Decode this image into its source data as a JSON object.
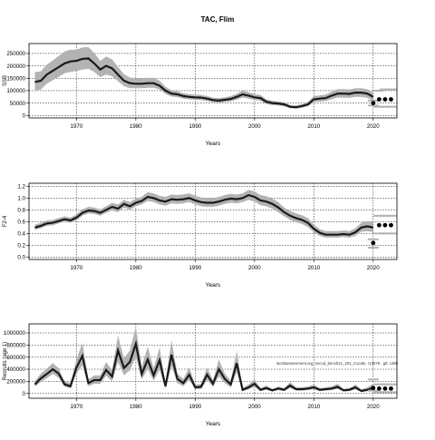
{
  "page": {
    "title": "TAC, Flim"
  },
  "annotation": "stockassessment.org, nscod_bench21_201_Cucale, r14079 , git: c28b",
  "colors": {
    "band": "#b3b3b3",
    "line": "#1a1a1a",
    "points": "#000000",
    "grid": "#000000",
    "axis": "#000000"
  },
  "chart_data": [
    {
      "type": "line",
      "title": "",
      "xlabel": "Years",
      "ylabel": "SSB",
      "xlim": [
        1962,
        2024
      ],
      "ylim": [
        -10000,
        290000
      ],
      "xticks": [
        1970,
        1980,
        1990,
        2000,
        2010,
        2020
      ],
      "yticks": [
        0,
        50000,
        100000,
        150000,
        200000,
        250000
      ],
      "grid": true,
      "x": [
        1963,
        1964,
        1965,
        1966,
        1967,
        1968,
        1969,
        1970,
        1971,
        1972,
        1973,
        1974,
        1975,
        1976,
        1977,
        1978,
        1979,
        1980,
        1981,
        1982,
        1983,
        1984,
        1985,
        1986,
        1987,
        1988,
        1989,
        1990,
        1991,
        1992,
        1993,
        1994,
        1995,
        1996,
        1997,
        1998,
        1999,
        2000,
        2001,
        2002,
        2003,
        2004,
        2005,
        2006,
        2007,
        2008,
        2009,
        2010,
        2011,
        2012,
        2013,
        2014,
        2015,
        2016,
        2017,
        2018,
        2019,
        2020
      ],
      "series": [
        {
          "values": [
            135000,
            140000,
            165000,
            180000,
            195000,
            210000,
            218000,
            220000,
            228000,
            230000,
            210000,
            185000,
            200000,
            190000,
            165000,
            140000,
            130000,
            128000,
            128000,
            130000,
            130000,
            120000,
            100000,
            88000,
            85000,
            78000,
            75000,
            73000,
            72000,
            68000,
            62000,
            60000,
            63000,
            67000,
            75000,
            85000,
            80000,
            73000,
            70000,
            55000,
            50000,
            48000,
            45000,
            35000,
            33000,
            38000,
            45000,
            65000,
            68000,
            70000,
            80000,
            88000,
            88000,
            87000,
            92000,
            92000,
            88000,
            75000
          ],
          "lower": [
            100000,
            105000,
            128000,
            142000,
            155000,
            170000,
            175000,
            180000,
            185000,
            188000,
            175000,
            155000,
            165000,
            158000,
            138000,
            118000,
            110000,
            110000,
            110000,
            112000,
            112000,
            105000,
            87000,
            76000,
            74000,
            68000,
            65000,
            63000,
            62000,
            58000,
            53000,
            51000,
            54000,
            57000,
            64000,
            72000,
            68000,
            62000,
            59000,
            46000,
            42000,
            40000,
            37000,
            29000,
            27000,
            31000,
            37000,
            54000,
            56000,
            58000,
            66000,
            72000,
            72000,
            71000,
            75000,
            75000,
            71000,
            60000
          ],
          "upper": [
            175000,
            178000,
            205000,
            222000,
            240000,
            258000,
            265000,
            265000,
            274000,
            276000,
            252000,
            220000,
            238000,
            226000,
            196000,
            166000,
            153000,
            150000,
            150000,
            152000,
            152000,
            140000,
            116000,
            102000,
            98000,
            90000,
            86000,
            84000,
            83000,
            79000,
            72000,
            70000,
            73000,
            78000,
            88000,
            100000,
            94000,
            86000,
            83000,
            65000,
            59000,
            57000,
            53000,
            42000,
            40000,
            46000,
            55000,
            78000,
            81000,
            84000,
            96000,
            106000,
            106000,
            105000,
            110000,
            110000,
            106000,
            92000
          ]
        }
      ],
      "points": {
        "x": [
          2020,
          2021,
          2022,
          2023
        ],
        "y": [
          50000,
          65000,
          65000,
          65000
        ],
        "lower": [
          40000,
          35000,
          35000,
          35000
        ],
        "upper": [
          60000,
          100000,
          105000,
          105000
        ]
      }
    },
    {
      "type": "line",
      "title": "",
      "xlabel": "Years",
      "ylabel": "F2-4",
      "xlim": [
        1962,
        2024
      ],
      "ylim": [
        -0.04,
        1.25
      ],
      "xticks": [
        1970,
        1980,
        1990,
        2000,
        2010,
        2020
      ],
      "yticks": [
        0.0,
        0.2,
        0.4,
        0.6,
        0.8,
        1.0,
        1.2
      ],
      "ytick_labels": [
        "0.0",
        "0.2",
        "0.4",
        "0.6",
        "0.8",
        "1.0",
        "1.2"
      ],
      "grid": true,
      "x": [
        1963,
        1964,
        1965,
        1966,
        1967,
        1968,
        1969,
        1970,
        1971,
        1972,
        1973,
        1974,
        1975,
        1976,
        1977,
        1978,
        1979,
        1980,
        1981,
        1982,
        1983,
        1984,
        1985,
        1986,
        1987,
        1988,
        1989,
        1990,
        1991,
        1992,
        1993,
        1994,
        1995,
        1996,
        1997,
        1998,
        1999,
        2000,
        2001,
        2002,
        2003,
        2004,
        2005,
        2006,
        2007,
        2008,
        2009,
        2010,
        2011,
        2012,
        2013,
        2014,
        2015,
        2016,
        2017,
        2018,
        2019,
        2020
      ],
      "series": [
        {
          "values": [
            0.5,
            0.53,
            0.57,
            0.58,
            0.61,
            0.64,
            0.62,
            0.67,
            0.75,
            0.79,
            0.78,
            0.75,
            0.8,
            0.85,
            0.82,
            0.9,
            0.86,
            0.92,
            0.95,
            1.02,
            1.0,
            0.96,
            0.94,
            0.98,
            0.97,
            0.98,
            1.0,
            0.96,
            0.93,
            0.92,
            0.92,
            0.94,
            0.97,
            0.99,
            0.98,
            1.0,
            1.05,
            1.02,
            0.96,
            0.94,
            0.9,
            0.84,
            0.76,
            0.7,
            0.66,
            0.63,
            0.58,
            0.48,
            0.41,
            0.38,
            0.38,
            0.38,
            0.39,
            0.38,
            0.42,
            0.5,
            0.52,
            0.5
          ],
          "lower": [
            0.46,
            0.49,
            0.53,
            0.54,
            0.57,
            0.6,
            0.58,
            0.62,
            0.7,
            0.74,
            0.73,
            0.7,
            0.75,
            0.79,
            0.76,
            0.84,
            0.8,
            0.86,
            0.89,
            0.95,
            0.93,
            0.89,
            0.87,
            0.91,
            0.9,
            0.91,
            0.93,
            0.89,
            0.86,
            0.85,
            0.85,
            0.87,
            0.9,
            0.92,
            0.91,
            0.93,
            0.97,
            0.94,
            0.88,
            0.86,
            0.82,
            0.76,
            0.69,
            0.63,
            0.59,
            0.56,
            0.51,
            0.42,
            0.36,
            0.33,
            0.33,
            0.33,
            0.34,
            0.33,
            0.36,
            0.43,
            0.44,
            0.42
          ],
          "upper": [
            0.55,
            0.58,
            0.62,
            0.63,
            0.66,
            0.69,
            0.67,
            0.72,
            0.81,
            0.85,
            0.84,
            0.81,
            0.86,
            0.92,
            0.89,
            0.97,
            0.93,
            0.99,
            1.02,
            1.1,
            1.08,
            1.04,
            1.02,
            1.06,
            1.05,
            1.06,
            1.08,
            1.04,
            1.01,
            1.0,
            1.0,
            1.02,
            1.05,
            1.07,
            1.06,
            1.08,
            1.14,
            1.11,
            1.05,
            1.03,
            0.99,
            0.93,
            0.84,
            0.78,
            0.74,
            0.71,
            0.66,
            0.55,
            0.47,
            0.44,
            0.44,
            0.44,
            0.45,
            0.44,
            0.49,
            0.58,
            0.61,
            0.6
          ]
        }
      ],
      "points": {
        "x": [
          2020,
          2021,
          2022,
          2023
        ],
        "y": [
          0.24,
          0.54,
          0.54,
          0.54
        ],
        "lower": [
          0.16,
          0.4,
          0.4,
          0.4
        ],
        "upper": [
          0.3,
          0.7,
          0.7,
          0.7
        ]
      }
    },
    {
      "type": "line",
      "title": "",
      "xlabel": "Years",
      "ylabel": "Recruits (age 1)",
      "xlim": [
        1962,
        2024
      ],
      "ylim": [
        -80000,
        1150000
      ],
      "xticks": [
        1970,
        1980,
        1990,
        2000,
        2010,
        2020
      ],
      "yticks": [
        0,
        200000,
        400000,
        600000,
        800000,
        1000000
      ],
      "grid": true,
      "x": [
        1963,
        1964,
        1965,
        1966,
        1967,
        1968,
        1969,
        1970,
        1971,
        1972,
        1973,
        1974,
        1975,
        1976,
        1977,
        1978,
        1979,
        1980,
        1981,
        1982,
        1983,
        1984,
        1985,
        1986,
        1987,
        1988,
        1989,
        1990,
        1991,
        1992,
        1993,
        1994,
        1995,
        1996,
        1997,
        1998,
        1999,
        2000,
        2001,
        2002,
        2003,
        2004,
        2005,
        2006,
        2007,
        2008,
        2009,
        2010,
        2011,
        2012,
        2013,
        2014,
        2015,
        2016,
        2017,
        2018,
        2019,
        2020
      ],
      "series": [
        {
          "values": [
            150000,
            250000,
            320000,
            400000,
            330000,
            150000,
            120000,
            430000,
            620000,
            170000,
            220000,
            220000,
            390000,
            280000,
            710000,
            420000,
            520000,
            820000,
            320000,
            560000,
            300000,
            550000,
            120000,
            640000,
            240000,
            170000,
            310000,
            100000,
            110000,
            310000,
            160000,
            400000,
            240000,
            150000,
            500000,
            60000,
            100000,
            160000,
            60000,
            90000,
            50000,
            80000,
            60000,
            130000,
            70000,
            70000,
            80000,
            100000,
            60000,
            70000,
            80000,
            110000,
            50000,
            60000,
            100000,
            40000,
            60000,
            90000
          ],
          "lower": [
            110000,
            190000,
            250000,
            320000,
            260000,
            110000,
            85000,
            330000,
            460000,
            120000,
            160000,
            160000,
            290000,
            200000,
            520000,
            300000,
            380000,
            600000,
            230000,
            400000,
            210000,
            390000,
            80000,
            450000,
            170000,
            120000,
            220000,
            70000,
            75000,
            220000,
            110000,
            280000,
            170000,
            100000,
            350000,
            40000,
            65000,
            110000,
            40000,
            60000,
            33000,
            55000,
            40000,
            90000,
            48000,
            48000,
            55000,
            70000,
            40000,
            48000,
            55000,
            75000,
            33000,
            40000,
            65000,
            25000,
            35000,
            45000
          ],
          "upper": [
            200000,
            330000,
            410000,
            500000,
            420000,
            200000,
            170000,
            560000,
            840000,
            230000,
            300000,
            300000,
            520000,
            380000,
            960000,
            580000,
            710000,
            1100000,
            440000,
            770000,
            420000,
            760000,
            170000,
            880000,
            330000,
            240000,
            430000,
            140000,
            160000,
            430000,
            220000,
            560000,
            330000,
            210000,
            700000,
            90000,
            150000,
            230000,
            90000,
            130000,
            75000,
            115000,
            90000,
            185000,
            100000,
            100000,
            115000,
            145000,
            90000,
            100000,
            115000,
            160000,
            75000,
            90000,
            150000,
            65000,
            100000,
            160000
          ]
        }
      ],
      "points": {
        "x": [
          2020,
          2021,
          2022,
          2023
        ],
        "y": [
          90000,
          80000,
          80000,
          80000
        ],
        "lower": [
          45000,
          20000,
          20000,
          20000
        ],
        "upper": [
          230000,
          150000,
          150000,
          150000
        ]
      }
    }
  ]
}
